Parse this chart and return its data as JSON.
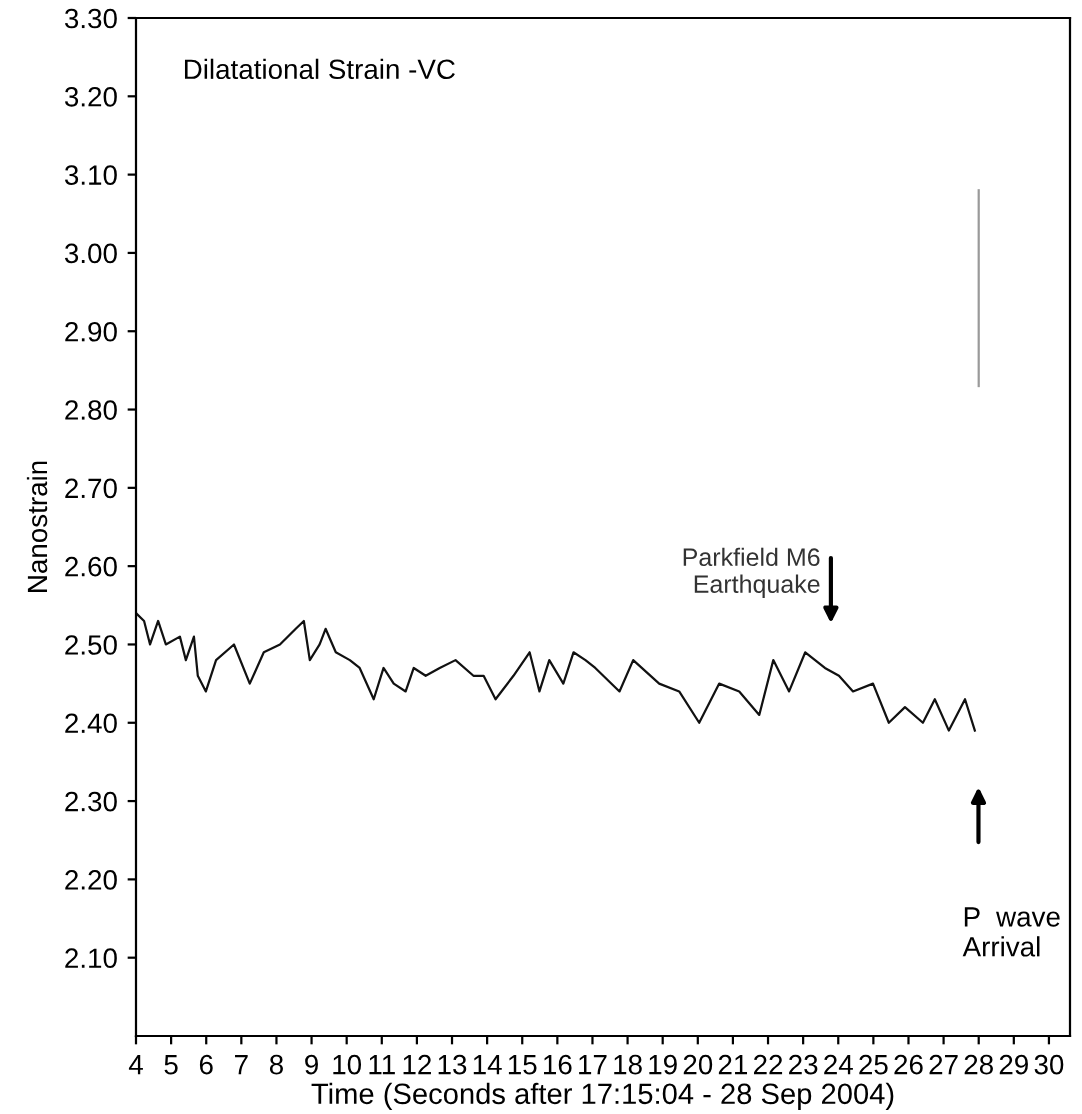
{
  "chart_data": {
    "type": "line",
    "title": "Dilatational Strain -VC",
    "xlabel": "Time (Seconds after 17:15:04 - 28 Sep 2004)",
    "ylabel": "Nanostrain",
    "series": [
      {
        "color": "#111111",
        "x": [
          4.0,
          4.23,
          4.4,
          4.63,
          4.85,
          5.25,
          5.42,
          5.65,
          5.76,
          5.99,
          6.28,
          6.79,
          7.24,
          7.64,
          8.1,
          8.55,
          8.78,
          8.95,
          9.23,
          9.4,
          9.69,
          10.09,
          10.37,
          10.77,
          11.05,
          11.34,
          11.68,
          11.91,
          12.25,
          12.65,
          13.1,
          13.61,
          13.9,
          14.24,
          14.75,
          15.21,
          15.49,
          15.77,
          16.17,
          16.46,
          16.8,
          17.08,
          17.77,
          18.16,
          18.9,
          19.47,
          20.04,
          20.61,
          21.18,
          21.75,
          22.15,
          22.6,
          23.06,
          23.62,
          24.02,
          24.42,
          24.99,
          25.44,
          25.9,
          26.41,
          26.75,
          27.15,
          27.61,
          27.89
        ],
        "values": [
          2.54,
          2.53,
          2.5,
          2.53,
          2.5,
          2.51,
          2.48,
          2.51,
          2.46,
          2.44,
          2.48,
          2.5,
          2.45,
          2.49,
          2.5,
          2.52,
          2.53,
          2.48,
          2.5,
          2.52,
          2.49,
          2.48,
          2.47,
          2.43,
          2.47,
          2.45,
          2.44,
          2.47,
          2.46,
          2.47,
          2.48,
          2.46,
          2.46,
          2.43,
          2.46,
          2.49,
          2.44,
          2.48,
          2.45,
          2.49,
          2.48,
          2.47,
          2.44,
          2.48,
          2.45,
          2.44,
          2.4,
          2.45,
          2.44,
          2.41,
          2.48,
          2.44,
          2.49,
          2.47,
          2.46,
          2.44,
          2.45,
          2.4,
          2.42,
          2.4,
          2.43,
          2.39,
          2.43,
          2.39
        ]
      },
      {
        "color": "#9a9a9a",
        "x": [
          28.0,
          28.0
        ],
        "values": [
          3.08,
          2.83
        ]
      }
    ],
    "annotations": [
      "Parkfield M6\nEarthquake",
      "P  wave\nArrival"
    ],
    "xlim": [
      4,
      30.6
    ],
    "xticks": [
      4,
      5,
      6,
      7,
      8,
      9,
      10,
      11,
      12,
      13,
      14,
      15,
      16,
      17,
      18,
      19,
      20,
      21,
      22,
      23,
      24,
      25,
      26,
      27,
      28,
      29,
      30
    ],
    "ylim": [
      2.0,
      3.3
    ],
    "yticks": [
      {
        "value": 2.1,
        "label": "2.10"
      },
      {
        "value": 2.2,
        "label": "2.20"
      },
      {
        "value": 2.3,
        "label": "2.30"
      },
      {
        "value": 2.4,
        "label": "2.40"
      },
      {
        "value": 2.5,
        "label": "2.50"
      },
      {
        "value": 2.6,
        "label": "2.60"
      },
      {
        "value": 2.7,
        "label": "2.70"
      },
      {
        "value": 2.8,
        "label": "2.80"
      },
      {
        "value": 2.9,
        "label": "2.90"
      },
      {
        "value": 3.0,
        "label": "3.00"
      },
      {
        "value": 3.1,
        "label": "3.10"
      },
      {
        "value": 3.2,
        "label": "3.20"
      },
      {
        "value": 3.3,
        "label": "3.30"
      }
    ],
    "grid": false,
    "legend": false
  }
}
